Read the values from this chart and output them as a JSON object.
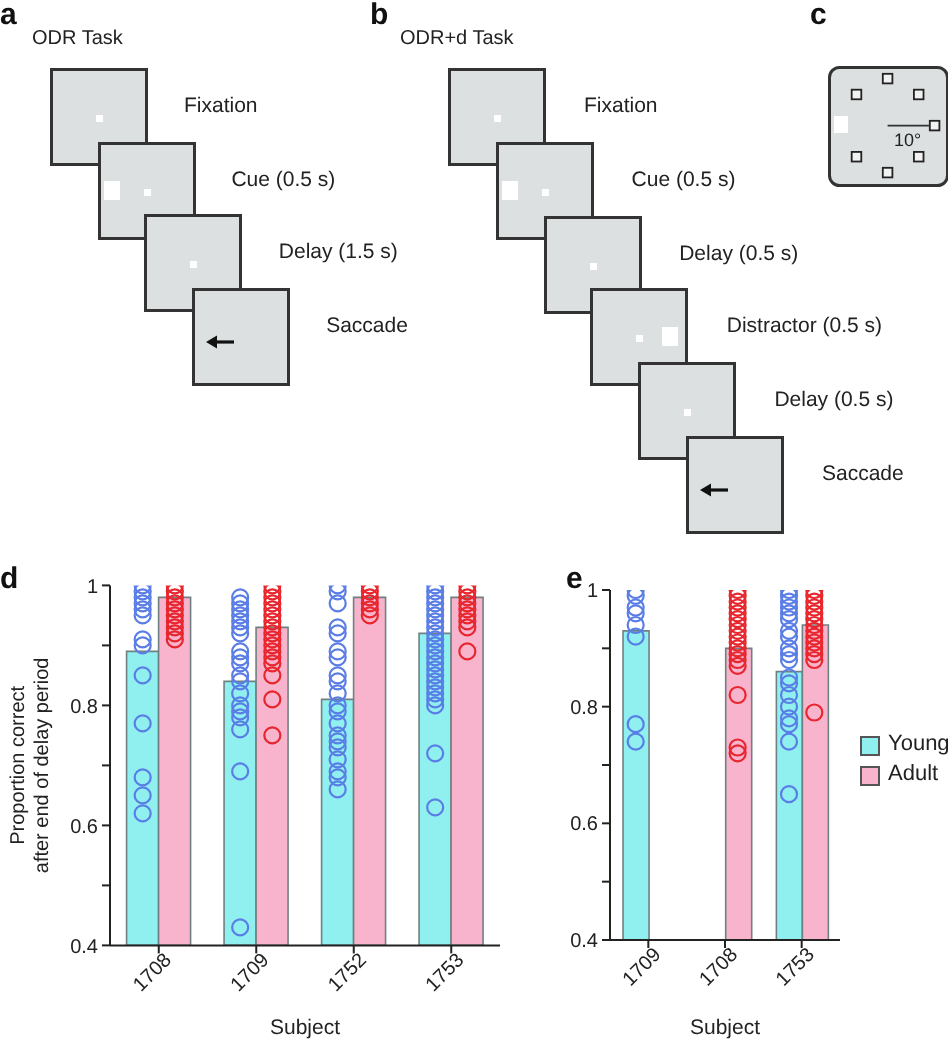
{
  "chart_data": [
    {
      "type": "other",
      "title": "a",
      "subtitle": "ODR Task",
      "annotations": [
        "Fixation",
        "Cue (0.5 s)",
        "Delay (1.5 s)",
        "Saccade"
      ]
    },
    {
      "type": "other",
      "title": "b",
      "subtitle": "ODR+d Task",
      "annotations": [
        "Fixation",
        "Cue (0.5 s)",
        "Delay (0.5 s)",
        "Distractor (0.5 s)",
        "Delay (0.5 s)",
        "Saccade"
      ]
    },
    {
      "type": "other",
      "title": "c",
      "annotations": [
        "10°"
      ]
    },
    {
      "type": "bar",
      "title": "d",
      "xlabel": "Subject",
      "ylabel": "Proportion correct\nafter end of delay period",
      "categories": [
        "1708",
        "1709",
        "1752",
        "1753"
      ],
      "ylim": [
        0.4,
        1
      ],
      "yticks": [
        0.4,
        {
          "value": 0.5,
          "label": null
        },
        0.6,
        {
          "value": 0.7,
          "label": null
        },
        0.8,
        {
          "value": 0.9,
          "label": null
        },
        1
      ],
      "marker": "circle",
      "series": [
        {
          "type": "bar",
          "color": "#90f0f0",
          "values": [
            0.89,
            0.84,
            0.81,
            0.92
          ]
        },
        {
          "type": "bar",
          "color": "#f8b4cd",
          "values": [
            0.98,
            0.93,
            0.98,
            0.98
          ]
        },
        {
          "type": "scatter",
          "color": "#5a7ee6",
          "values": [
            1,
            0.98,
            1,
            1
          ]
        },
        {
          "type": "scatter",
          "color": "#5a7ee6",
          "values": [
            0.99,
            0.97,
            0.99,
            0.99
          ]
        },
        {
          "type": "scatter",
          "color": "#5a7ee6",
          "values": [
            0.98,
            0.96,
            0.97,
            0.98
          ]
        },
        {
          "type": "scatter",
          "color": "#5a7ee6",
          "values": [
            0.97,
            0.95,
            0.93,
            0.97
          ]
        },
        {
          "type": "scatter",
          "color": "#5a7ee6",
          "values": [
            0.96,
            0.94,
            0.92,
            0.96
          ]
        },
        {
          "type": "scatter",
          "color": "#5a7ee6",
          "values": [
            0.95,
            0.93,
            0.89,
            0.95
          ]
        },
        {
          "type": "scatter",
          "color": "#5a7ee6",
          "values": [
            0.91,
            0.92,
            0.88,
            0.94
          ]
        },
        {
          "type": "scatter",
          "color": "#5a7ee6",
          "values": [
            0.9,
            0.89,
            0.85,
            0.93
          ]
        },
        {
          "type": "scatter",
          "color": "#5a7ee6",
          "values": [
            0.85,
            0.88,
            0.84,
            0.92
          ]
        },
        {
          "type": "scatter",
          "color": "#5a7ee6",
          "values": [
            0.77,
            0.87,
            0.82,
            0.91
          ]
        },
        {
          "type": "scatter",
          "color": "#5a7ee6",
          "values": [
            0.68,
            0.85,
            0.8,
            0.9
          ]
        },
        {
          "type": "scatter",
          "color": "#5a7ee6",
          "values": [
            0.65,
            0.84,
            0.79,
            0.89
          ]
        },
        {
          "type": "scatter",
          "color": "#5a7ee6",
          "values": [
            0.62,
            0.82,
            0.77,
            0.88
          ]
        },
        {
          "type": "scatter",
          "color": "#5a7ee6",
          "values": [
            null,
            0.8,
            0.75,
            0.87
          ]
        },
        {
          "type": "scatter",
          "color": "#5a7ee6",
          "values": [
            null,
            0.79,
            0.74,
            0.86
          ]
        },
        {
          "type": "scatter",
          "color": "#5a7ee6",
          "values": [
            null,
            0.78,
            0.73,
            0.85
          ]
        },
        {
          "type": "scatter",
          "color": "#5a7ee6",
          "values": [
            null,
            0.76,
            0.71,
            0.84
          ]
        },
        {
          "type": "scatter",
          "color": "#5a7ee6",
          "values": [
            null,
            0.69,
            0.69,
            0.83
          ]
        },
        {
          "type": "scatter",
          "color": "#5a7ee6",
          "values": [
            null,
            0.43,
            0.68,
            0.82
          ]
        },
        {
          "type": "scatter",
          "color": "#5a7ee6",
          "values": [
            null,
            null,
            0.66,
            0.81
          ]
        },
        {
          "type": "scatter",
          "color": "#5a7ee6",
          "values": [
            null,
            null,
            null,
            0.8
          ]
        },
        {
          "type": "scatter",
          "color": "#5a7ee6",
          "values": [
            null,
            null,
            null,
            0.72
          ]
        },
        {
          "type": "scatter",
          "color": "#5a7ee6",
          "values": [
            null,
            null,
            null,
            0.63
          ]
        },
        {
          "type": "scatter",
          "color": "#e8262d",
          "values": [
            1,
            1,
            1,
            1
          ]
        },
        {
          "type": "scatter",
          "color": "#e8262d",
          "values": [
            0.99,
            0.99,
            0.99,
            0.99
          ]
        },
        {
          "type": "scatter",
          "color": "#e8262d",
          "values": [
            0.98,
            0.98,
            0.98,
            0.98
          ]
        },
        {
          "type": "scatter",
          "color": "#e8262d",
          "values": [
            0.97,
            0.97,
            0.97,
            0.97
          ]
        },
        {
          "type": "scatter",
          "color": "#e8262d",
          "values": [
            0.96,
            0.96,
            0.96,
            0.96
          ]
        },
        {
          "type": "scatter",
          "color": "#e8262d",
          "values": [
            0.95,
            0.95,
            0.95,
            0.95
          ]
        },
        {
          "type": "scatter",
          "color": "#e8262d",
          "values": [
            0.94,
            0.94,
            null,
            0.94
          ]
        },
        {
          "type": "scatter",
          "color": "#e8262d",
          "values": [
            0.93,
            0.93,
            null,
            0.93
          ]
        },
        {
          "type": "scatter",
          "color": "#e8262d",
          "values": [
            0.92,
            0.92,
            null,
            0.89
          ]
        },
        {
          "type": "scatter",
          "color": "#e8262d",
          "values": [
            0.91,
            0.91,
            null,
            null
          ]
        },
        {
          "type": "scatter",
          "color": "#e8262d",
          "values": [
            null,
            0.9,
            null,
            null
          ]
        },
        {
          "type": "scatter",
          "color": "#e8262d",
          "values": [
            null,
            0.89,
            null,
            null
          ]
        },
        {
          "type": "scatter",
          "color": "#e8262d",
          "values": [
            null,
            0.88,
            null,
            null
          ]
        },
        {
          "type": "scatter",
          "color": "#e8262d",
          "values": [
            null,
            0.87,
            null,
            null
          ]
        },
        {
          "type": "scatter",
          "color": "#e8262d",
          "values": [
            null,
            0.85,
            null,
            null
          ]
        },
        {
          "type": "scatter",
          "color": "#e8262d",
          "values": [
            null,
            0.81,
            null,
            null
          ]
        },
        {
          "type": "scatter",
          "color": "#e8262d",
          "values": [
            null,
            0.75,
            null,
            null
          ]
        }
      ]
    },
    {
      "type": "bar",
      "title": "e",
      "xlabel": "Subject",
      "categories": [
        "1709",
        "1708",
        "1753"
      ],
      "ylim": [
        0.4,
        1
      ],
      "yticks": [
        0.4,
        {
          "value": 0.5,
          "label": null
        },
        0.6,
        {
          "value": 0.7,
          "label": null
        },
        0.8,
        {
          "value": 0.9,
          "label": null
        },
        1
      ],
      "marker": "circle",
      "legend": "right",
      "series": [
        {
          "name": "Young",
          "type": "bar",
          "color": "#90f0f0",
          "values": [
            0.93,
            null,
            0.86
          ]
        },
        {
          "name": "Adult",
          "type": "bar",
          "color": "#f8b4cd",
          "values": [
            null,
            0.9,
            0.94
          ]
        },
        {
          "type": "scatter",
          "color": "#5a7ee6",
          "values": [
            1,
            null,
            1
          ]
        },
        {
          "type": "scatter",
          "color": "#5a7ee6",
          "values": [
            0.99,
            null,
            0.99
          ]
        },
        {
          "type": "scatter",
          "color": "#5a7ee6",
          "values": [
            0.97,
            null,
            0.98
          ]
        },
        {
          "type": "scatter",
          "color": "#5a7ee6",
          "values": [
            0.96,
            null,
            0.97
          ]
        },
        {
          "type": "scatter",
          "color": "#5a7ee6",
          "values": [
            0.94,
            null,
            0.96
          ]
        },
        {
          "type": "scatter",
          "color": "#5a7ee6",
          "values": [
            0.92,
            null,
            0.95
          ]
        },
        {
          "type": "scatter",
          "color": "#5a7ee6",
          "values": [
            0.77,
            null,
            0.93
          ]
        },
        {
          "type": "scatter",
          "color": "#5a7ee6",
          "values": [
            0.74,
            null,
            0.92
          ]
        },
        {
          "type": "scatter",
          "color": "#5a7ee6",
          "values": [
            null,
            null,
            0.9
          ]
        },
        {
          "type": "scatter",
          "color": "#5a7ee6",
          "values": [
            null,
            null,
            0.89
          ]
        },
        {
          "type": "scatter",
          "color": "#5a7ee6",
          "values": [
            null,
            null,
            0.88
          ]
        },
        {
          "type": "scatter",
          "color": "#5a7ee6",
          "values": [
            null,
            null,
            0.85
          ]
        },
        {
          "type": "scatter",
          "color": "#5a7ee6",
          "values": [
            null,
            null,
            0.84
          ]
        },
        {
          "type": "scatter",
          "color": "#5a7ee6",
          "values": [
            null,
            null,
            0.82
          ]
        },
        {
          "type": "scatter",
          "color": "#5a7ee6",
          "values": [
            null,
            null,
            0.8
          ]
        },
        {
          "type": "scatter",
          "color": "#5a7ee6",
          "values": [
            null,
            null,
            0.78
          ]
        },
        {
          "type": "scatter",
          "color": "#5a7ee6",
          "values": [
            null,
            null,
            0.77
          ]
        },
        {
          "type": "scatter",
          "color": "#5a7ee6",
          "values": [
            null,
            null,
            0.74
          ]
        },
        {
          "type": "scatter",
          "color": "#5a7ee6",
          "values": [
            null,
            null,
            0.65
          ]
        },
        {
          "type": "scatter",
          "color": "#e8262d",
          "values": [
            null,
            1,
            1
          ]
        },
        {
          "type": "scatter",
          "color": "#e8262d",
          "values": [
            null,
            0.99,
            0.99
          ]
        },
        {
          "type": "scatter",
          "color": "#e8262d",
          "values": [
            null,
            0.98,
            0.98
          ]
        },
        {
          "type": "scatter",
          "color": "#e8262d",
          "values": [
            null,
            0.97,
            0.97
          ]
        },
        {
          "type": "scatter",
          "color": "#e8262d",
          "values": [
            null,
            0.96,
            0.96
          ]
        },
        {
          "type": "scatter",
          "color": "#e8262d",
          "values": [
            null,
            0.95,
            0.95
          ]
        },
        {
          "type": "scatter",
          "color": "#e8262d",
          "values": [
            null,
            0.94,
            0.94
          ]
        },
        {
          "type": "scatter",
          "color": "#e8262d",
          "values": [
            null,
            0.93,
            0.93
          ]
        },
        {
          "type": "scatter",
          "color": "#e8262d",
          "values": [
            null,
            0.92,
            0.92
          ]
        },
        {
          "type": "scatter",
          "color": "#e8262d",
          "values": [
            null,
            0.91,
            0.91
          ]
        },
        {
          "type": "scatter",
          "color": "#e8262d",
          "values": [
            null,
            0.9,
            0.9
          ]
        },
        {
          "type": "scatter",
          "color": "#e8262d",
          "values": [
            null,
            0.89,
            0.89
          ]
        },
        {
          "type": "scatter",
          "color": "#e8262d",
          "values": [
            null,
            0.88,
            0.88
          ]
        },
        {
          "type": "scatter",
          "color": "#e8262d",
          "values": [
            null,
            0.87,
            0.79
          ]
        },
        {
          "type": "scatter",
          "color": "#e8262d",
          "values": [
            null,
            0.82,
            null
          ]
        },
        {
          "type": "scatter",
          "color": "#e8262d",
          "values": [
            null,
            0.73,
            null
          ]
        },
        {
          "type": "scatter",
          "color": "#e8262d",
          "values": [
            null,
            0.72,
            null
          ]
        }
      ]
    }
  ]
}
